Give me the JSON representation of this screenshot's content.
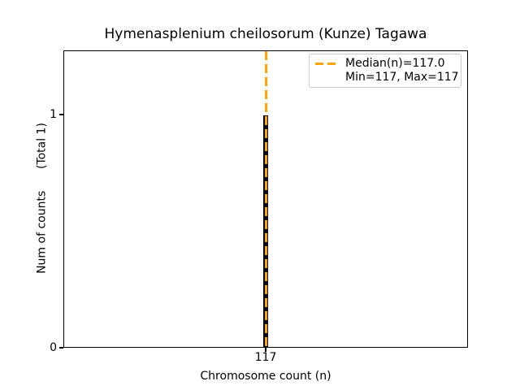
{
  "chart_data": {
    "type": "bar",
    "title": "Hymenasplenium cheilosorum (Kunze) Tagawa",
    "xlabel": "Chromosome count (n)",
    "ylabel": "Num of counts      (Total 1)",
    "ylabel_parts": [
      "Num of counts",
      "(Total 1)"
    ],
    "categories": [
      117
    ],
    "values": [
      1
    ],
    "total_counts": 1,
    "median": 117.0,
    "min": 117,
    "max": 117,
    "xticks": [
      "117"
    ],
    "yticks": [
      "0",
      "1"
    ],
    "ylim": [
      0,
      1.28
    ],
    "grid": false,
    "legend": {
      "position": "upper-right",
      "entries": [
        "Median(n)=117.0",
        "Min=117, Max=117"
      ]
    },
    "colors": {
      "bar": "#000000",
      "median_line": "#ffa500",
      "axis": "#000000",
      "text": "#000000",
      "legend_border": "#cccccc",
      "background": "#ffffff"
    }
  }
}
